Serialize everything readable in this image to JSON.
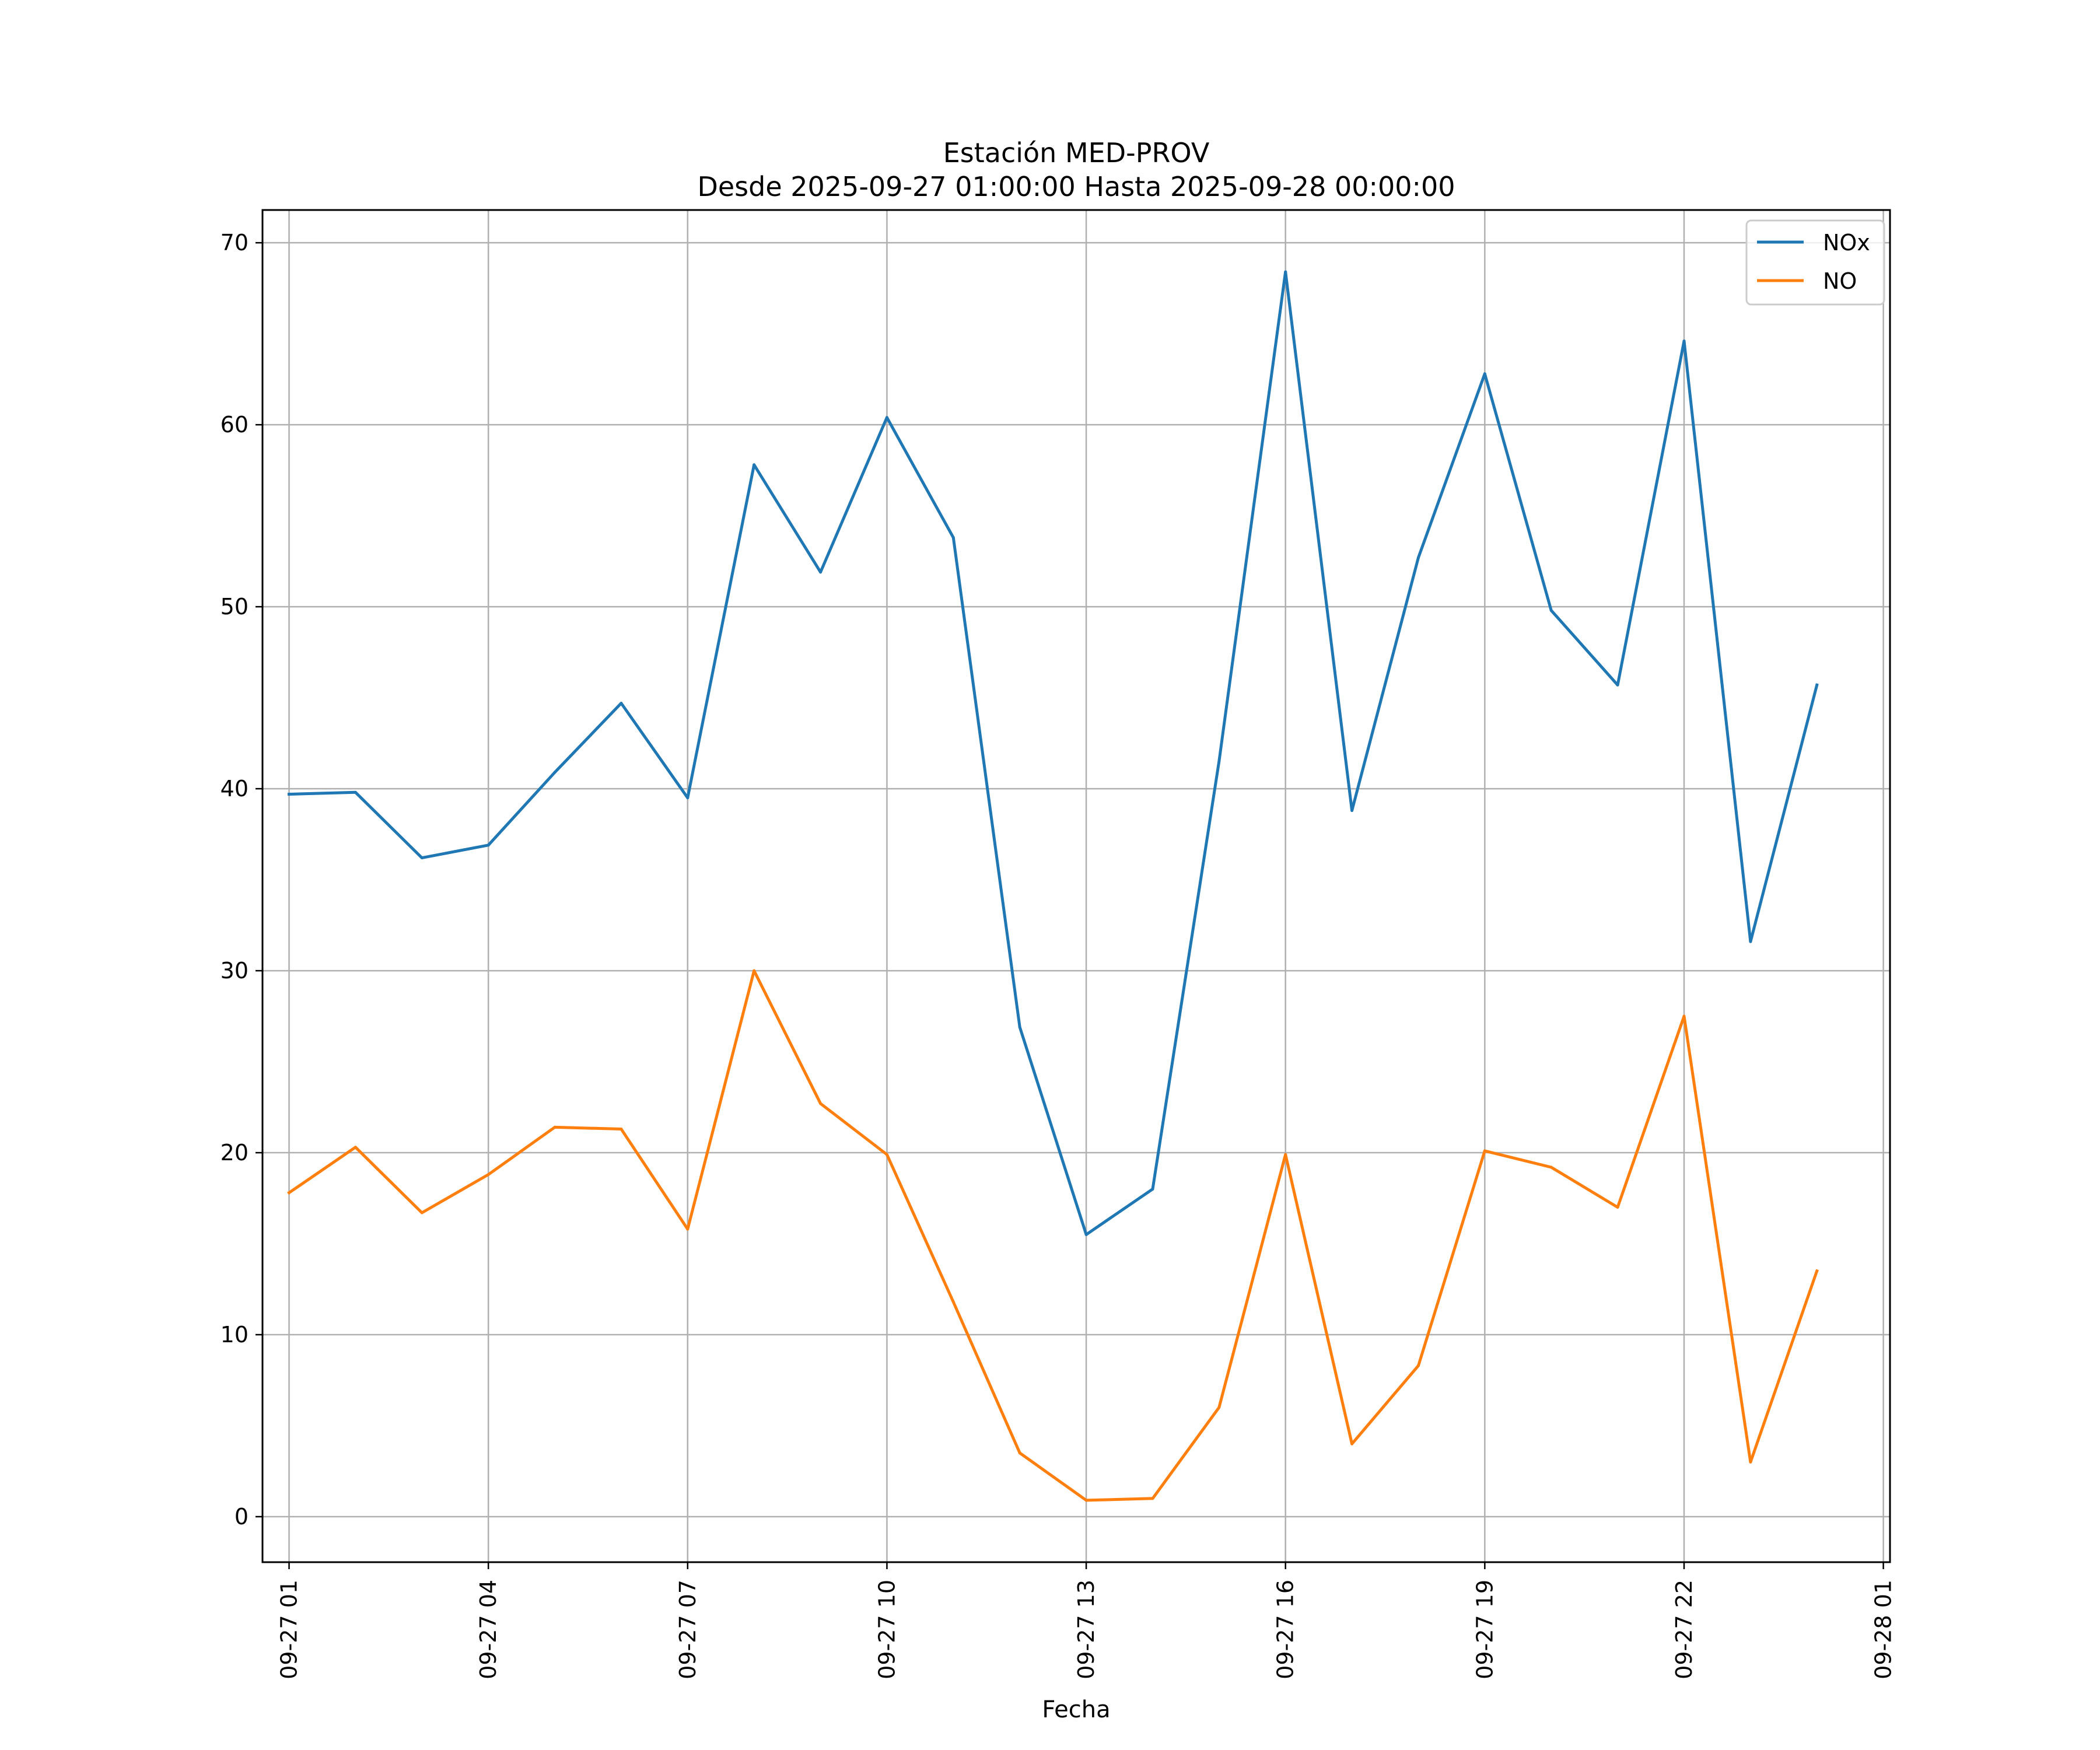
{
  "chart_data": {
    "type": "line",
    "title_line1": "Estación MED-PROV",
    "title_line2": "Desde 2025-09-27 01:00:00 Hasta 2025-09-28 00:00:00",
    "xlabel": "Fecha",
    "ylabel": "",
    "x_hours": [
      1,
      2,
      3,
      4,
      5,
      6,
      7,
      8,
      9,
      10,
      11,
      12,
      13,
      14,
      15,
      16,
      17,
      18,
      19,
      20,
      21,
      22,
      23,
      24
    ],
    "xlim": [
      0.6,
      25.1
    ],
    "ylim": [
      -2.5,
      71.8
    ],
    "x_ticks": [
      {
        "hour": 1,
        "label": "09-27 01"
      },
      {
        "hour": 4,
        "label": "09-27 04"
      },
      {
        "hour": 7,
        "label": "09-27 07"
      },
      {
        "hour": 10,
        "label": "09-27 10"
      },
      {
        "hour": 13,
        "label": "09-27 13"
      },
      {
        "hour": 16,
        "label": "09-27 16"
      },
      {
        "hour": 19,
        "label": "09-27 19"
      },
      {
        "hour": 22,
        "label": "09-27 22"
      },
      {
        "hour": 25,
        "label": "09-28 01"
      }
    ],
    "y_ticks": [
      {
        "value": 0,
        "label": "0"
      },
      {
        "value": 10,
        "label": "10"
      },
      {
        "value": 20,
        "label": "20"
      },
      {
        "value": 30,
        "label": "30"
      },
      {
        "value": 40,
        "label": "40"
      },
      {
        "value": 50,
        "label": "50"
      },
      {
        "value": 60,
        "label": "60"
      },
      {
        "value": 70,
        "label": "70"
      }
    ],
    "grid": true,
    "legend_position": "top-right",
    "series": [
      {
        "name": "NOx",
        "color": "#1f77b4",
        "values": [
          39.7,
          39.8,
          36.2,
          36.9,
          40.9,
          44.7,
          39.5,
          57.8,
          51.9,
          60.4,
          53.8,
          26.9,
          15.5,
          18.0,
          41.5,
          68.4,
          38.8,
          52.7,
          62.8,
          49.8,
          45.7,
          64.6,
          31.6,
          45.7
        ]
      },
      {
        "name": "NO",
        "color": "#ff7f0e",
        "values": [
          17.8,
          20.3,
          16.7,
          18.8,
          21.4,
          21.3,
          15.8,
          30.0,
          22.7,
          19.9,
          11.8,
          3.5,
          0.9,
          1.0,
          6.0,
          19.9,
          4.0,
          8.3,
          20.1,
          19.2,
          17.0,
          27.5,
          3.0,
          13.5
        ]
      }
    ]
  }
}
